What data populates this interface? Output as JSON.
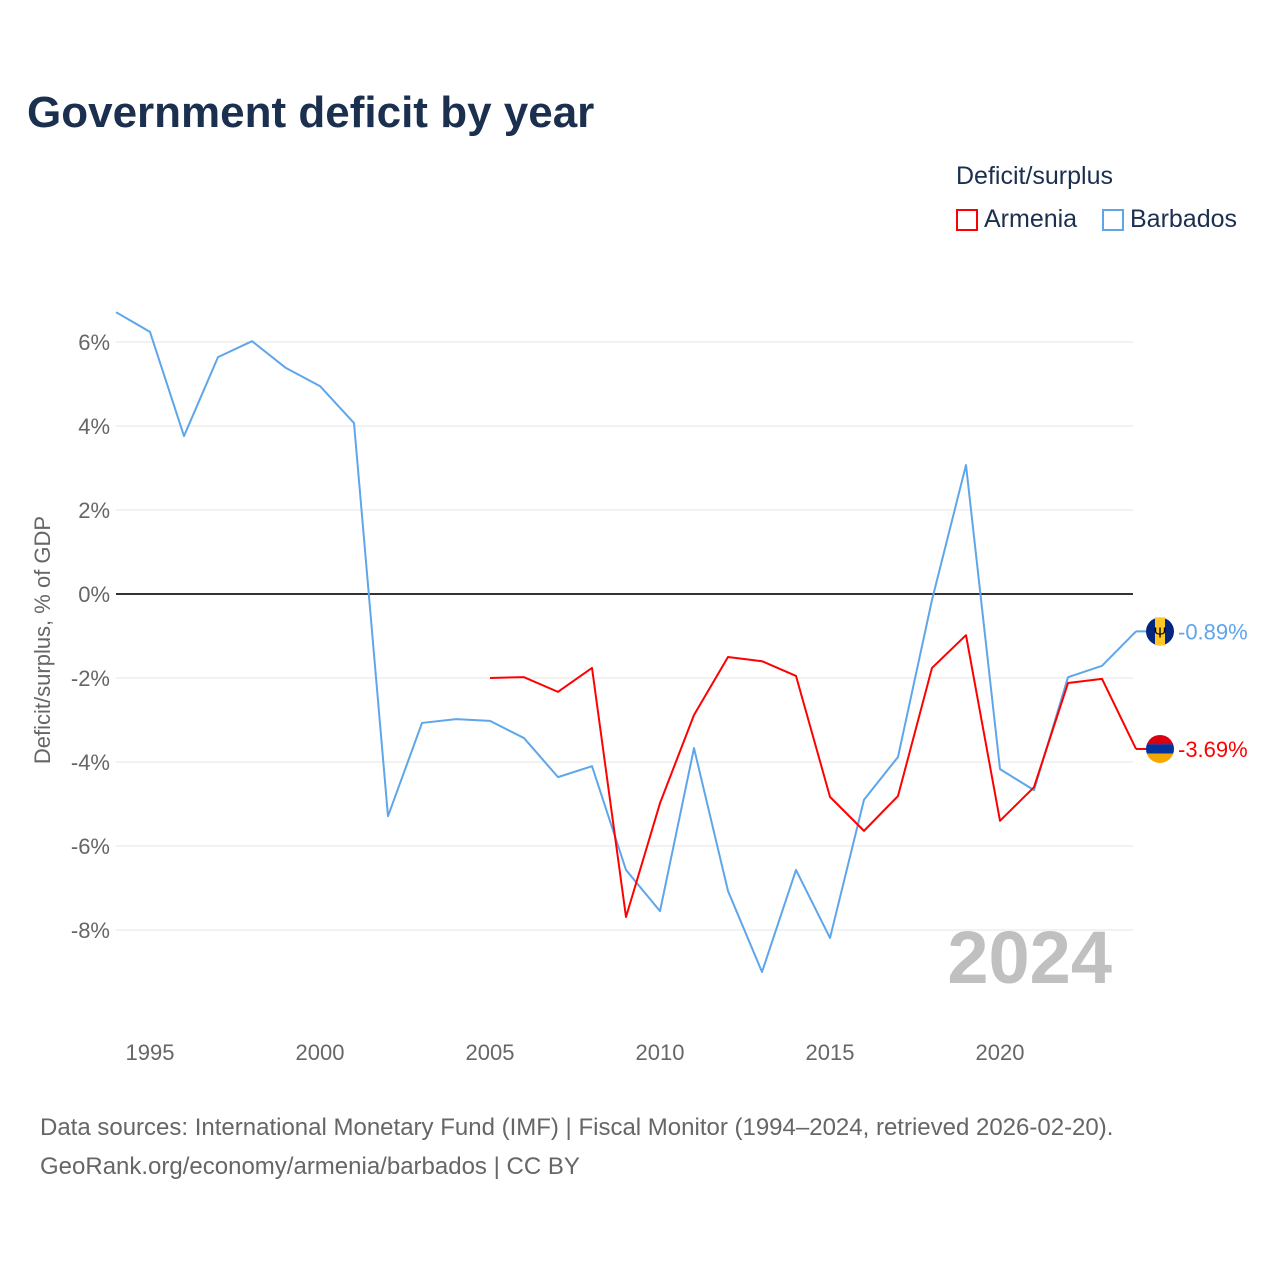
{
  "title": "Government deficit by year",
  "legend": {
    "title": "Deficit/surplus",
    "items": [
      {
        "label": "Armenia",
        "color": "#ff0000"
      },
      {
        "label": "Barbados",
        "color": "#5ea6ea"
      }
    ]
  },
  "source_line1": "Data sources: International Monetary Fund (IMF) | Fiscal Monitor (1994–2024, retrieved 2026-02-20).",
  "source_line2": "GeoRank.org/economy/armenia/barbados | CC BY",
  "chart_data": {
    "type": "line",
    "title": "Government deficit by year",
    "xlabel": "",
    "ylabel": "Deficit/surplus, % of GDP",
    "xlim": [
      1994,
      2024
    ],
    "ylim": [
      -10,
      7
    ],
    "x_ticks": [
      1995,
      2000,
      2005,
      2010,
      2015,
      2020
    ],
    "y_ticks": [
      6,
      4,
      2,
      0,
      -2,
      -4,
      -6,
      -8
    ],
    "y_tick_labels": [
      "6%",
      "4%",
      "2%",
      "0%",
      "-2%",
      "-4%",
      "-6%",
      "-8%"
    ],
    "watermark_year": "2024",
    "series": [
      {
        "name": "Barbados",
        "color": "#5ea6ea",
        "end_label": "-0.89%",
        "x": [
          1994,
          1995,
          1996,
          1997,
          1998,
          1999,
          2000,
          2001,
          2002,
          2003,
          2004,
          2005,
          2006,
          2007,
          2008,
          2009,
          2010,
          2011,
          2012,
          2013,
          2014,
          2015,
          2016,
          2017,
          2018,
          2019,
          2020,
          2021,
          2022,
          2023,
          2024
        ],
        "values": [
          6.71,
          6.24,
          3.76,
          5.64,
          6.02,
          5.38,
          4.95,
          4.07,
          -5.29,
          -3.07,
          -2.98,
          -3.02,
          -3.43,
          -4.36,
          -4.1,
          -6.57,
          -7.55,
          -3.67,
          -7.07,
          -9.0,
          -6.57,
          -8.19,
          -4.9,
          -3.88,
          -0.14,
          3.07,
          -4.17,
          -4.67,
          -1.98,
          -1.71,
          -0.89
        ]
      },
      {
        "name": "Armenia",
        "color": "#ff0000",
        "end_label": "-3.69%",
        "x": [
          2005,
          2006,
          2007,
          2008,
          2009,
          2010,
          2011,
          2012,
          2013,
          2014,
          2015,
          2016,
          2017,
          2018,
          2019,
          2020,
          2021,
          2022,
          2023,
          2024
        ],
        "values": [
          -2.0,
          -1.98,
          -2.33,
          -1.76,
          -7.69,
          -4.98,
          -2.88,
          -1.5,
          -1.6,
          -1.95,
          -4.83,
          -5.64,
          -4.81,
          -1.76,
          -0.98,
          -5.4,
          -4.6,
          -2.12,
          -2.02,
          -3.69
        ]
      }
    ]
  }
}
